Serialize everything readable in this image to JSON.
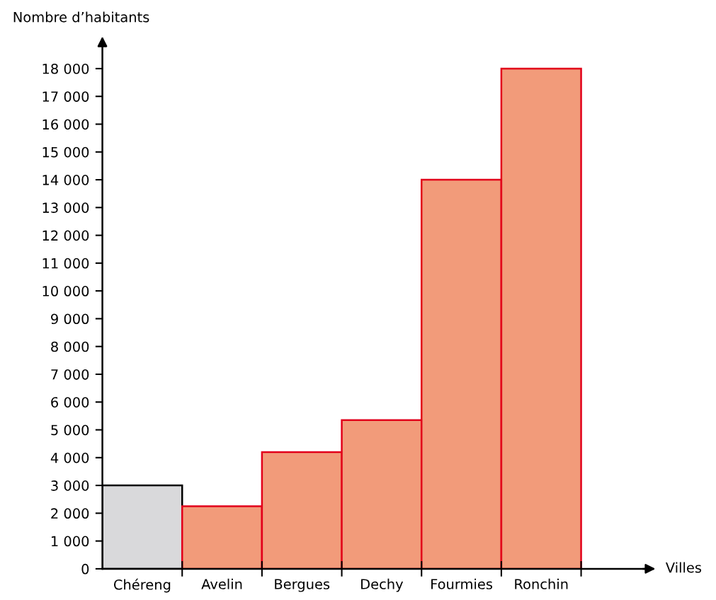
{
  "chart_data": {
    "type": "bar",
    "ylabel": "Nombre d’habitants",
    "xlabel": "Villes",
    "categories": [
      "Chéreng",
      "Avelin",
      "Bergues",
      "Dechy",
      "Fourmies",
      "Ronchin"
    ],
    "values": [
      3000,
      2250,
      4200,
      5350,
      14000,
      18000
    ],
    "colors": [
      "#d9d9db",
      "#f29b7a",
      "#f29b7a",
      "#f29b7a",
      "#f29b7a",
      "#f29b7a"
    ],
    "ylim": [
      0,
      19000
    ],
    "yticks": [
      0,
      {
        "value": 1000,
        "label": "1 000"
      },
      {
        "value": 2000,
        "label": "2 000"
      },
      {
        "value": 3000,
        "label": "3 000"
      },
      {
        "value": 4000,
        "label": "4 000"
      },
      {
        "value": 5000,
        "label": "5 000"
      },
      {
        "value": 6000,
        "label": "6 000"
      },
      {
        "value": 7000,
        "label": "7 000"
      },
      {
        "value": 8000,
        "label": "8 000"
      },
      {
        "value": 9000,
        "label": "9 000"
      },
      {
        "value": 10000,
        "label": "10 000"
      },
      {
        "value": 11000,
        "label": "11 000"
      },
      {
        "value": 12000,
        "label": "12 000"
      },
      {
        "value": 13000,
        "label": "13 000"
      },
      {
        "value": 14000,
        "label": "14 000"
      },
      {
        "value": 15000,
        "label": "15 000"
      },
      {
        "value": 16000,
        "label": "16 000"
      },
      {
        "value": 17000,
        "label": "17 000"
      },
      {
        "value": 18000,
        "label": "18 000"
      }
    ],
    "grid": false,
    "legend": false
  }
}
